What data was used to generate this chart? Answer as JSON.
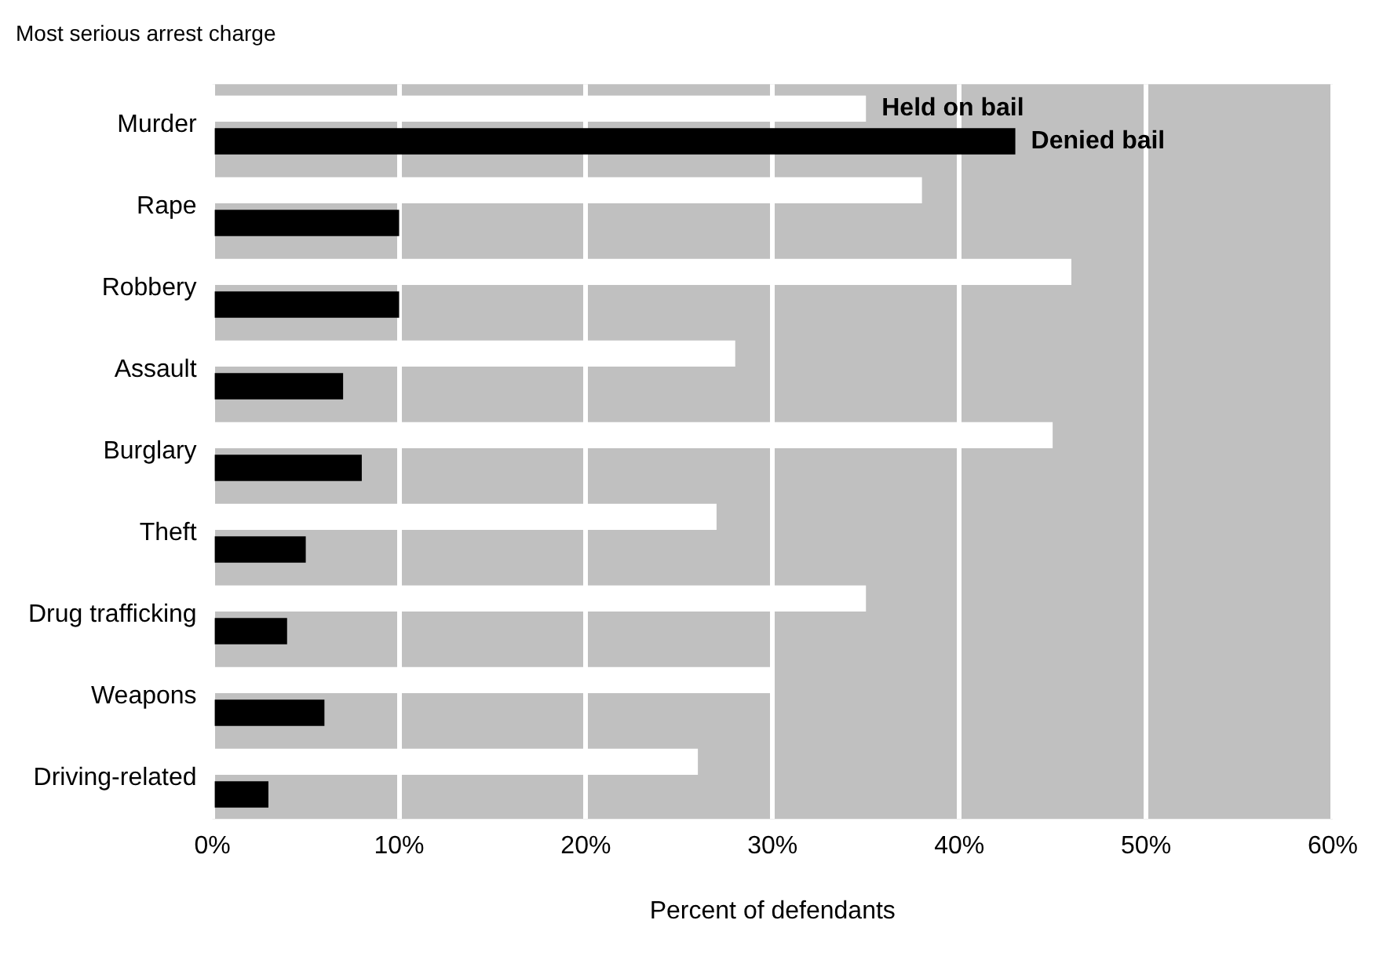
{
  "chart_data": {
    "type": "bar",
    "orientation": "horizontal",
    "ylabel": "Most serious arrest charge",
    "xlabel": "Percent of defendants",
    "categories": [
      "Murder",
      "Rape",
      "Robbery",
      "Assault",
      "Burglary",
      "Theft",
      "Drug trafficking",
      "Weapons",
      "Driving-related"
    ],
    "series": [
      {
        "name": "Held on bail",
        "color": "#ffffff",
        "values": [
          35,
          38,
          46,
          28,
          45,
          27,
          35,
          30,
          26
        ]
      },
      {
        "name": "Denied bail",
        "color": "#000000",
        "values": [
          43,
          10,
          10,
          7,
          8,
          5,
          4,
          6,
          3
        ]
      }
    ],
    "xlim": [
      0,
      60
    ],
    "xticks": [
      {
        "value": 0,
        "label": "0%"
      },
      {
        "value": 10,
        "label": "10%"
      },
      {
        "value": 20,
        "label": "20%"
      },
      {
        "value": 30,
        "label": "30%"
      },
      {
        "value": 40,
        "label": "40%"
      },
      {
        "value": 50,
        "label": "50%"
      },
      {
        "value": 60,
        "label": "60%"
      }
    ],
    "grid": "x",
    "legend": false
  }
}
